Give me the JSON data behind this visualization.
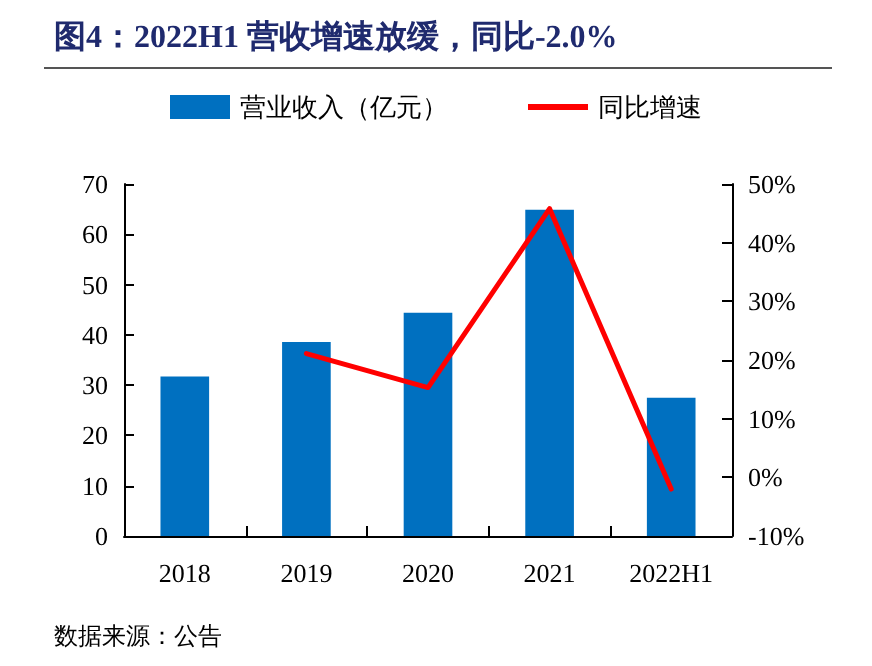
{
  "chart_data": {
    "type": "bar",
    "title": "图4：2022H1 营收增速放缓，同比-2.0%",
    "categories": [
      "2018",
      "2019",
      "2020",
      "2021",
      "2022H1"
    ],
    "series": [
      {
        "name": "营业收入（亿元）",
        "color": "#0070c0",
        "values": [
          31.7,
          38.6,
          44.4,
          64.9,
          27.5
        ]
      },
      {
        "name": "同比增速",
        "type": "line",
        "axis": "y2",
        "color": "#ff0000",
        "values": [
          null,
          21.1,
          15.3,
          45.8,
          -2.0
        ]
      }
    ],
    "ylim": [
      0,
      70
    ],
    "yticks": [
      0,
      10,
      20,
      30,
      40,
      50,
      60,
      70
    ],
    "y2lim": [
      -10,
      50
    ],
    "y2ticks": [
      {
        "value": -10,
        "label": "-10%"
      },
      {
        "value": 0,
        "label": "0%"
      },
      {
        "value": 10,
        "label": "10%"
      },
      {
        "value": 20,
        "label": "20%"
      },
      {
        "value": 30,
        "label": "30%"
      },
      {
        "value": 40,
        "label": "40%"
      },
      {
        "value": 50,
        "label": "50%"
      }
    ],
    "grid": false,
    "legend": "top",
    "marker": "none",
    "line_style": "solid",
    "annotations": [
      "数据来源：公告"
    ]
  }
}
